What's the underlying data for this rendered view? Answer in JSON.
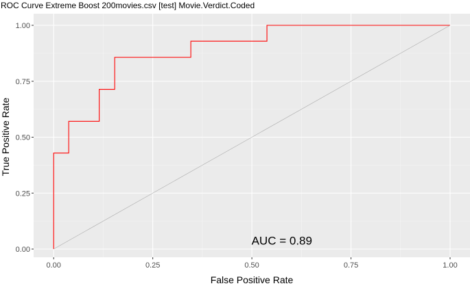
{
  "chart_data": {
    "type": "line",
    "title": "ROC Curve Extreme Boost 200movies.csv [test] Movie.Verdict.Coded",
    "xlabel": "False Positive Rate",
    "ylabel": "True Positive Rate",
    "xlim": [
      0,
      1
    ],
    "ylim": [
      0,
      1
    ],
    "x_ticks": [
      "0.00",
      "0.25",
      "0.50",
      "0.75",
      "1.00"
    ],
    "y_ticks": [
      "0.00",
      "0.25",
      "0.50",
      "0.75",
      "1.00"
    ],
    "grid": true,
    "legend": "none",
    "annotation": "AUC = 0.89",
    "annotation_position": {
      "x": 0.5,
      "y": 0.02
    },
    "colors": {
      "panel_background": "#ebebeb",
      "grid_major": "#ffffff",
      "grid_minor": "#f5f5f5",
      "roc": "#ff0000",
      "diagonal": "#aaaaaa"
    },
    "series": [
      {
        "role": "roc",
        "x": [
          0,
          0,
          0.038,
          0.038,
          0.115,
          0.115,
          0.154,
          0.154,
          0.346,
          0.346,
          0.538,
          0.538,
          1.0
        ],
        "y": [
          0,
          0.429,
          0.429,
          0.571,
          0.571,
          0.714,
          0.714,
          0.857,
          0.857,
          0.929,
          0.929,
          1.0,
          1.0
        ]
      },
      {
        "role": "diagonal",
        "x": [
          0,
          1
        ],
        "y": [
          0,
          1
        ]
      }
    ]
  }
}
